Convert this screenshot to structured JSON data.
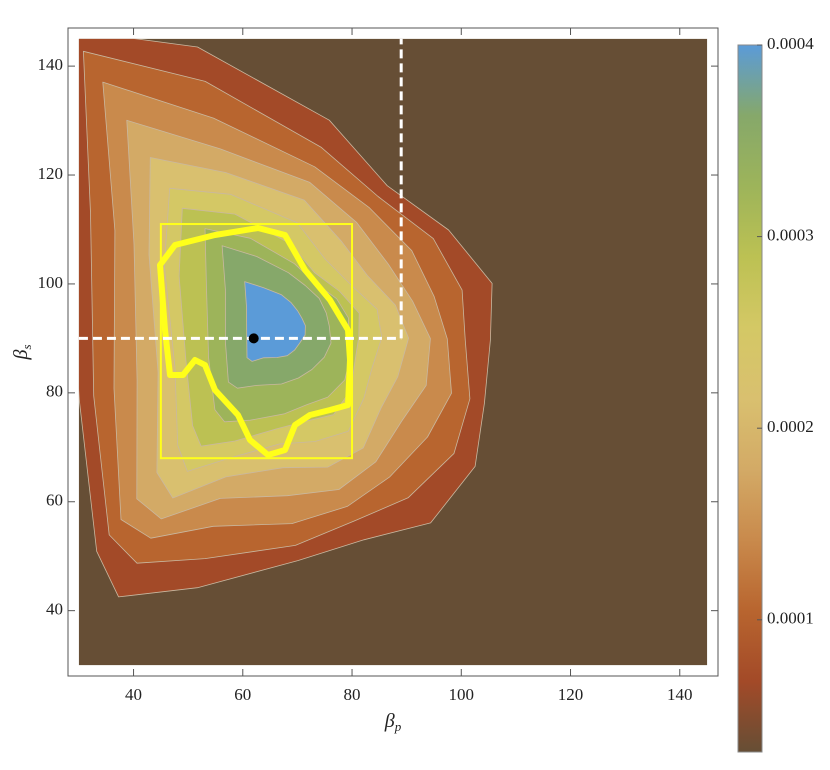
{
  "chart_data": {
    "type": "contour",
    "xlabel": "β",
    "xlabel_sub": "p",
    "ylabel": "β",
    "ylabel_sub": "s",
    "xlim": [
      28,
      147
    ],
    "ylim": [
      28,
      147
    ],
    "xticks": [
      40,
      60,
      80,
      100,
      120,
      140
    ],
    "yticks": [
      40,
      60,
      80,
      100,
      120,
      140
    ],
    "region": {
      "xlim": [
        30,
        145
      ],
      "ylim": [
        30,
        145
      ]
    },
    "point": {
      "x": 62,
      "y": 90
    },
    "threshold": {
      "x": 89,
      "y": 90
    },
    "box": {
      "x": [
        45,
        80
      ],
      "y": [
        68,
        111
      ]
    },
    "colorbar": {
      "lim": [
        3.1e-05,
        0.0004
      ],
      "ticks": [
        0.0001,
        0.0002,
        0.0003,
        0.0004
      ],
      "colors": [
        "#664e35",
        "#a34a28",
        "#b8652f",
        "#c98a4c",
        "#d3aa66",
        "#d9c06f",
        "#d4c865",
        "#bcc153",
        "#9db45a",
        "#86a86a",
        "#5b9bd8"
      ]
    }
  }
}
